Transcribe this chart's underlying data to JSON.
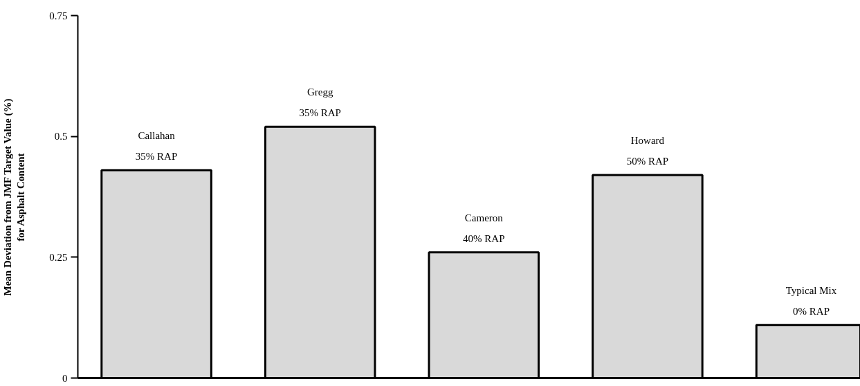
{
  "chart_data": {
    "type": "bar",
    "ylabel": "Mean Deviation from JMF Target Value (%)\nfor Asphalt Content",
    "categories": [
      "Callahan",
      "Gregg",
      "Cameron",
      "Howard",
      "Typical Mix"
    ],
    "values": [
      0.43,
      0.52,
      0.26,
      0.42,
      0.11
    ],
    "color": "#d9d9d9",
    "ylim": [
      0,
      0.75
    ],
    "yticks": [
      0,
      0.25,
      0.5,
      0.75
    ],
    "grid": false,
    "annotations": [
      {
        "text": "35% RAP",
        "x": "Callahan",
        "y": 0.43
      },
      {
        "text": "35% RAP",
        "x": "Gregg",
        "y": 0.52
      },
      {
        "text": "40% RAP",
        "x": "Cameron",
        "y": 0.26
      },
      {
        "text": "50% RAP",
        "x": "Howard",
        "y": 0.42
      },
      {
        "text": "0% RAP",
        "x": "Typical Mix",
        "y": 0.11
      }
    ]
  }
}
